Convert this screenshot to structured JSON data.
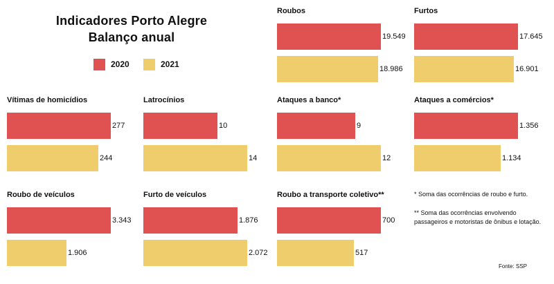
{
  "header": {
    "title_line1": "Indicadores Porto Alegre",
    "title_line2": "Balanço anual"
  },
  "legend": [
    {
      "label": "2020",
      "color": "#e05252"
    },
    {
      "label": "2021",
      "color": "#f0cd6c"
    }
  ],
  "chart_data": [
    {
      "type": "bar",
      "title": "Roubos",
      "categories": [
        "2020",
        "2021"
      ],
      "values": [
        19549,
        18986
      ],
      "labels": [
        "19.549",
        "18.986"
      ]
    },
    {
      "type": "bar",
      "title": "Furtos",
      "categories": [
        "2020",
        "2021"
      ],
      "values": [
        17645,
        16901
      ],
      "labels": [
        "17.645",
        "16.901"
      ]
    },
    {
      "type": "bar",
      "title": "Vítimas de homicídios",
      "categories": [
        "2020",
        "2021"
      ],
      "values": [
        277,
        244
      ],
      "labels": [
        "277",
        "244"
      ]
    },
    {
      "type": "bar",
      "title": "Latrocínios",
      "categories": [
        "2020",
        "2021"
      ],
      "values": [
        10,
        14
      ],
      "labels": [
        "10",
        "14"
      ]
    },
    {
      "type": "bar",
      "title": "Ataques a banco*",
      "categories": [
        "2020",
        "2021"
      ],
      "values": [
        9,
        12
      ],
      "labels": [
        "9",
        "12"
      ]
    },
    {
      "type": "bar",
      "title": "Ataques a comércios*",
      "categories": [
        "2020",
        "2021"
      ],
      "values": [
        1356,
        1134
      ],
      "labels": [
        "1.356",
        "1.134"
      ]
    },
    {
      "type": "bar",
      "title": "Roubo de veículos",
      "categories": [
        "2020",
        "2021"
      ],
      "values": [
        3343,
        1906
      ],
      "labels": [
        "3.343",
        "1.906"
      ]
    },
    {
      "type": "bar",
      "title": "Furto de veículos",
      "categories": [
        "2020",
        "2021"
      ],
      "values": [
        1876,
        2072
      ],
      "labels": [
        "1.876",
        "2.072"
      ]
    },
    {
      "type": "bar",
      "title": "Roubo a transporte coletivo**",
      "categories": [
        "2020",
        "2021"
      ],
      "values": [
        700,
        517
      ],
      "labels": [
        "700",
        "517"
      ]
    }
  ],
  "notes": {
    "note1": "* Soma das ocorrências de roubo e furto.",
    "note2": "** Soma das ocorrências envolvendo passageiros e motoristas de ônibus e lotação."
  },
  "source": "Fonte: SSP"
}
